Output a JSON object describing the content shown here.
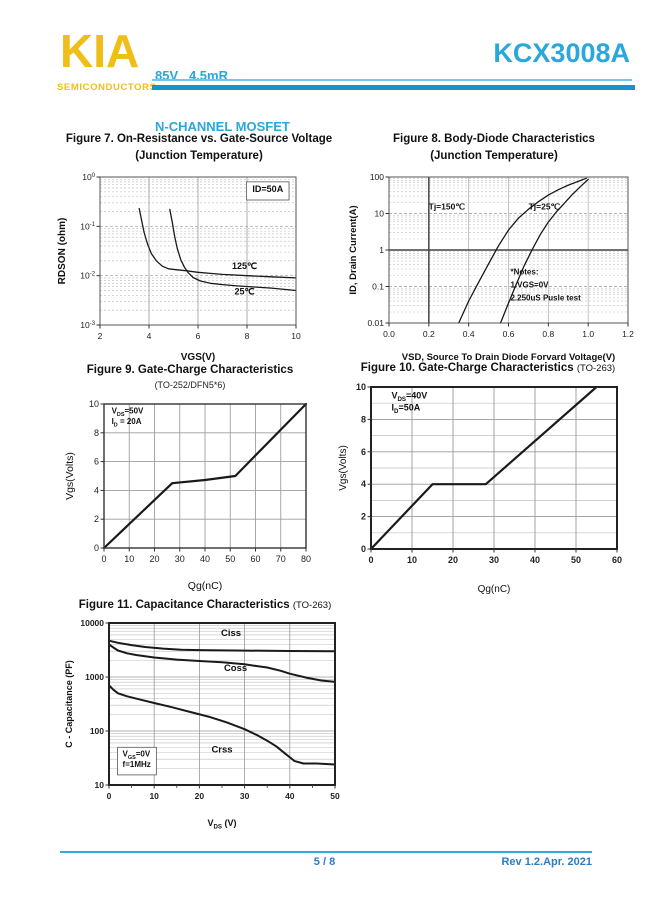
{
  "header": {
    "logo": "KIA",
    "logo_sub": "SEMICONDUCTORS",
    "spec_line1": "85V   4.5mR",
    "spec_line2": "N-CHANNEL MOSFET",
    "part_number": "KCX3008A"
  },
  "footer": {
    "page": "5 / 8",
    "revision": "Rev 1.2.Apr. 2021"
  },
  "colors": {
    "accent_cyan": "#2AA7DC",
    "accent_yellow": "#F0BE18",
    "rule_cyan": "#1793CE",
    "footer_blue": "#2B7BC5",
    "curve_ink": "#1a1a1a"
  },
  "chart_data": [
    {
      "figure": "Figure 7",
      "type": "line",
      "title": "Figure 7. On-Resistance vs. Gate-Source Voltage",
      "subtitle": "(Junction Temperature)",
      "xlabel": "VGS(V)",
      "ylabel": "RDSON (ohm)",
      "x": {
        "scale": "linear",
        "min": 2,
        "max": 10,
        "ticks": [
          {
            "v": 2,
            "l": "2"
          },
          {
            "v": 4,
            "l": "4"
          },
          {
            "v": 6,
            "l": "6"
          },
          {
            "v": 8,
            "l": "8"
          },
          {
            "v": 10,
            "l": "10"
          }
        ]
      },
      "y": {
        "scale": "log",
        "min": 0.001,
        "max": 1,
        "ticks": [
          {
            "v": 1,
            "l": "10^0"
          },
          {
            "v": 0.1,
            "l": "10^-1"
          },
          {
            "v": 0.01,
            "l": "10^-2"
          },
          {
            "v": 0.001,
            "l": "10^-3"
          }
        ]
      },
      "series": [
        {
          "name": "125℃",
          "points": [
            [
              3.6,
              0.23
            ],
            [
              3.7,
              0.13
            ],
            [
              3.8,
              0.075
            ],
            [
              3.95,
              0.042
            ],
            [
              4.1,
              0.028
            ],
            [
              4.3,
              0.02
            ],
            [
              4.55,
              0.0155
            ],
            [
              4.8,
              0.0138
            ],
            [
              5.1,
              0.0132
            ],
            [
              5.5,
              0.0126
            ],
            [
              6,
              0.0117
            ],
            [
              6.5,
              0.0111
            ],
            [
              7,
              0.0106
            ],
            [
              7.5,
              0.0103
            ],
            [
              8,
              0.01
            ],
            [
              9,
              0.0095
            ],
            [
              10,
              0.009
            ]
          ]
        },
        {
          "name": "25℃",
          "points": [
            [
              4.85,
              0.22
            ],
            [
              4.95,
              0.12
            ],
            [
              5.05,
              0.062
            ],
            [
              5.15,
              0.036
            ],
            [
              5.3,
              0.021
            ],
            [
              5.45,
              0.0148
            ],
            [
              5.6,
              0.0115
            ],
            [
              5.8,
              0.0092
            ],
            [
              6.1,
              0.0078
            ],
            [
              6.5,
              0.007
            ],
            [
              7,
              0.0066
            ],
            [
              7.6,
              0.0062
            ],
            [
              8.3,
              0.0059
            ],
            [
              9,
              0.0056
            ],
            [
              10,
              0.005
            ]
          ]
        }
      ],
      "labels": [
        {
          "x": 7.9,
          "y": 0.0135,
          "text": "125℃",
          "size": 9
        },
        {
          "x": 7.9,
          "y": 0.0042,
          "text": "25℃",
          "size": 9
        },
        {
          "x": 8.85,
          "y": 0.5,
          "text": "ID=50A",
          "box": true,
          "size": 9
        }
      ]
    },
    {
      "figure": "Figure 8",
      "type": "line",
      "title": "Figure 8. Body-Diode Characteristics",
      "subtitle": "(Junction Temperature)",
      "xlabel": "VSD, Source To Drain Diode Forvard Voltage(V)",
      "ylabel": "ID, Drain Current(A)",
      "x": {
        "scale": "linear",
        "min": 0,
        "max": 1.2,
        "ticks": [
          {
            "v": 0,
            "l": "0.0"
          },
          {
            "v": 0.2,
            "l": "0.2"
          },
          {
            "v": 0.4,
            "l": "0.4"
          },
          {
            "v": 0.6,
            "l": "0.6"
          },
          {
            "v": 0.8,
            "l": "0.8"
          },
          {
            "v": 1.0,
            "l": "1.0"
          },
          {
            "v": 1.2,
            "l": "1.2"
          }
        ]
      },
      "y": {
        "scale": "log",
        "min": 0.01,
        "max": 100,
        "ticks": [
          {
            "v": 100,
            "l": "100"
          },
          {
            "v": 10,
            "l": "10"
          },
          {
            "v": 1,
            "l": "1"
          },
          {
            "v": 0.1,
            "l": "0.1"
          },
          {
            "v": 0.01,
            "l": "0.01"
          }
        ]
      },
      "emph": [
        {
          "axis": "y",
          "v": 1
        },
        {
          "axis": "x",
          "v": 0.2
        }
      ],
      "series": [
        {
          "name": "Tj=150℃",
          "points": [
            [
              0.35,
              0.01
            ],
            [
              0.4,
              0.04
            ],
            [
              0.45,
              0.13
            ],
            [
              0.5,
              0.42
            ],
            [
              0.55,
              1.3
            ],
            [
              0.6,
              3.5
            ],
            [
              0.65,
              7.5
            ],
            [
              0.7,
              13
            ],
            [
              0.75,
              21
            ],
            [
              0.8,
              32
            ],
            [
              0.85,
              45
            ],
            [
              0.9,
              60
            ],
            [
              0.95,
              76
            ],
            [
              0.99,
              92
            ]
          ]
        },
        {
          "name": "Tj=25℃",
          "points": [
            [
              0.56,
              0.01
            ],
            [
              0.6,
              0.035
            ],
            [
              0.64,
              0.12
            ],
            [
              0.68,
              0.38
            ],
            [
              0.72,
              1.05
            ],
            [
              0.76,
              2.7
            ],
            [
              0.8,
              5.8
            ],
            [
              0.84,
              11
            ],
            [
              0.88,
              19
            ],
            [
              0.92,
              33
            ],
            [
              0.96,
              54
            ],
            [
              1.0,
              86
            ]
          ]
        }
      ],
      "labels": [
        {
          "x": 0.29,
          "y": 13,
          "text": "Tj=150℃",
          "size": 8.5
        },
        {
          "x": 0.78,
          "y": 13,
          "text": "Tj=25℃",
          "size": 8.5
        },
        {
          "x": 0.61,
          "y": 0.21,
          "text": "*Notes:",
          "anchor": "start",
          "size": 8
        },
        {
          "x": 0.61,
          "y": 0.095,
          "text": "1.VGS=0V",
          "anchor": "start",
          "size": 8
        },
        {
          "x": 0.61,
          "y": 0.042,
          "text": "2.250uS Pusle test",
          "anchor": "start",
          "size": 8
        }
      ]
    },
    {
      "figure": "Figure 9",
      "type": "line",
      "title": "Figure 9. Gate-Charge Characteristics",
      "subtitle": "(TO-252/DFN5*6)",
      "xlabel": "Qg(nC)",
      "ylabel": "Vgs(Volts)",
      "x": {
        "scale": "linear",
        "min": 0,
        "max": 80,
        "ticks": [
          {
            "v": 0,
            "l": "0"
          },
          {
            "v": 10,
            "l": "10"
          },
          {
            "v": 20,
            "l": "20"
          },
          {
            "v": 30,
            "l": "30"
          },
          {
            "v": 40,
            "l": "40"
          },
          {
            "v": 50,
            "l": "50"
          },
          {
            "v": 60,
            "l": "60"
          },
          {
            "v": 70,
            "l": "70"
          },
          {
            "v": 80,
            "l": "80"
          }
        ]
      },
      "y": {
        "scale": "linear",
        "min": 0,
        "max": 10,
        "ticks": [
          {
            "v": 0,
            "l": "0"
          },
          {
            "v": 2,
            "l": "2"
          },
          {
            "v": 4,
            "l": "4"
          },
          {
            "v": 6,
            "l": "6"
          },
          {
            "v": 8,
            "l": "8"
          },
          {
            "v": 10,
            "l": "10"
          }
        ]
      },
      "series": [
        {
          "name": "Vgs",
          "points": [
            [
              0,
              0
            ],
            [
              27,
              4.5
            ],
            [
              40,
              4.72
            ],
            [
              52,
              5.0
            ],
            [
              80,
              10
            ]
          ]
        }
      ],
      "labels": [
        {
          "x": 3,
          "y": 9.35,
          "lines": [
            "V~DS~=50V",
            "I~D~ = 20A"
          ],
          "anchor": "start",
          "size": 8
        }
      ]
    },
    {
      "figure": "Figure 10",
      "type": "line",
      "title": "Figure 10. Gate-Charge Characteristics",
      "suffix": "(TO-263)",
      "xlabel": "Qg(nC)",
      "ylabel": "Vgs(Volts)",
      "x": {
        "scale": "linear",
        "min": 0,
        "max": 60,
        "ticks": [
          {
            "v": 0,
            "l": "0"
          },
          {
            "v": 10,
            "l": "10"
          },
          {
            "v": 20,
            "l": "20"
          },
          {
            "v": 30,
            "l": "30"
          },
          {
            "v": 40,
            "l": "40"
          },
          {
            "v": 50,
            "l": "50"
          },
          {
            "v": 60,
            "l": "60"
          }
        ]
      },
      "y": {
        "scale": "linear",
        "min": 0,
        "max": 10,
        "minorStep": 1,
        "ticks": [
          {
            "v": 0,
            "l": "0"
          },
          {
            "v": 2,
            "l": "2"
          },
          {
            "v": 4,
            "l": "4"
          },
          {
            "v": 6,
            "l": "6"
          },
          {
            "v": 8,
            "l": "8"
          },
          {
            "v": 10,
            "l": "10"
          }
        ]
      },
      "series": [
        {
          "name": "Vgs",
          "points": [
            [
              0,
              0
            ],
            [
              15,
              4
            ],
            [
              28,
              4
            ],
            [
              55,
              10
            ]
          ]
        }
      ],
      "labels": [
        {
          "x": 5,
          "y": 9.3,
          "lines": [
            "V~DS~=40V",
            "I~D~=50A"
          ],
          "anchor": "start",
          "size": 9
        }
      ]
    },
    {
      "figure": "Figure 11",
      "type": "line",
      "title": "Figure 11. Capacitance Characteristics",
      "suffix": "(TO-263)",
      "xlabel": "V~DS~ (V)",
      "ylabel": "C - Capacitance (PF)",
      "x": {
        "scale": "linear",
        "min": 0,
        "max": 50,
        "minorMarkStep": 5,
        "ticks": [
          {
            "v": 0,
            "l": "0"
          },
          {
            "v": 10,
            "l": "10"
          },
          {
            "v": 20,
            "l": "20"
          },
          {
            "v": 30,
            "l": "30"
          },
          {
            "v": 40,
            "l": "40"
          },
          {
            "v": 50,
            "l": "50"
          }
        ]
      },
      "y": {
        "scale": "log",
        "min": 10,
        "max": 10000,
        "ticks": [
          {
            "v": 10000,
            "l": "10000"
          },
          {
            "v": 1000,
            "l": "1000"
          },
          {
            "v": 100,
            "l": "100"
          },
          {
            "v": 10,
            "l": "10"
          }
        ]
      },
      "series": [
        {
          "name": "Ciss",
          "points": [
            [
              0,
              4700
            ],
            [
              2,
              4300
            ],
            [
              5,
              3900
            ],
            [
              8,
              3600
            ],
            [
              12,
              3350
            ],
            [
              16,
              3200
            ],
            [
              20,
              3150
            ],
            [
              30,
              3080
            ],
            [
              40,
              3030
            ],
            [
              50,
              3000
            ]
          ]
        },
        {
          "name": "Coss",
          "points": [
            [
              0,
              4000
            ],
            [
              1,
              3500
            ],
            [
              2,
              3100
            ],
            [
              4,
              2750
            ],
            [
              6,
              2550
            ],
            [
              10,
              2300
            ],
            [
              15,
              2100
            ],
            [
              20,
              1980
            ],
            [
              25,
              1880
            ],
            [
              30,
              1720
            ],
            [
              33,
              1580
            ],
            [
              35,
              1500
            ],
            [
              38,
              1300
            ],
            [
              40,
              1150
            ],
            [
              44,
              960
            ],
            [
              47,
              860
            ],
            [
              50,
              810
            ]
          ]
        },
        {
          "name": "Crss",
          "points": [
            [
              0,
              700
            ],
            [
              1,
              580
            ],
            [
              2,
              500
            ],
            [
              4,
              440
            ],
            [
              7,
              380
            ],
            [
              10,
              330
            ],
            [
              14,
              275
            ],
            [
              18,
              225
            ],
            [
              22,
              185
            ],
            [
              26,
              145
            ],
            [
              30,
              108
            ],
            [
              33,
              82
            ],
            [
              35,
              66
            ],
            [
              37,
              52
            ],
            [
              39,
              38
            ],
            [
              41,
              28
            ],
            [
              43,
              25
            ],
            [
              46,
              25
            ],
            [
              50,
              24
            ]
          ]
        }
      ],
      "labels": [
        {
          "x": 27,
          "y": 5800,
          "text": "Ciss",
          "size": 9.5
        },
        {
          "x": 28,
          "y": 1280,
          "text": "Coss",
          "size": 9.5
        },
        {
          "x": 25,
          "y": 40,
          "text": "Crss",
          "size": 9.5
        },
        {
          "x": 3,
          "y": 34,
          "lines": [
            "V~GS~=0V",
            "f=1MHz"
          ],
          "anchor": "start",
          "box": true,
          "size": 8
        }
      ]
    }
  ]
}
